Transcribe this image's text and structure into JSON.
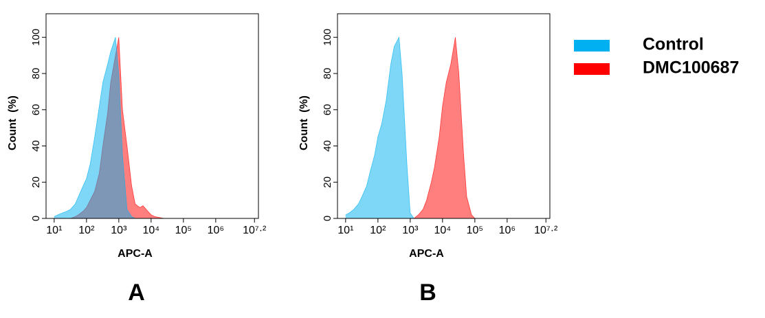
{
  "chart_data": [
    {
      "type": "area",
      "label": "A",
      "xlabel": "APC-A",
      "ylabel": "Count  (%)",
      "xscale": "log",
      "xlim": [
        5.6,
        21000000
      ],
      "ylim": [
        0,
        113
      ],
      "xticks": [
        {
          "value": 10,
          "label": "10¹"
        },
        {
          "value": 100,
          "label": "10²"
        },
        {
          "value": 1000,
          "label": "10³"
        },
        {
          "value": 10000,
          "label": "10⁴"
        },
        {
          "value": 100000,
          "label": "10⁵"
        },
        {
          "value": 1000000,
          "label": "10⁶"
        },
        {
          "value": 15848932,
          "label": "10⁷·²"
        }
      ],
      "yticks": [
        0,
        20,
        40,
        60,
        80,
        100
      ],
      "x": [
        10,
        13,
        18,
        25,
        32,
        45,
        56,
        79,
        100,
        130,
        180,
        250,
        320,
        450,
        560,
        790,
        1000,
        1300,
        1800,
        2500,
        3200,
        4500,
        5600,
        7900,
        10000,
        13000,
        18000,
        25000,
        32000,
        45000,
        56000,
        79000,
        100000
      ],
      "series": [
        {
          "name": "DMC100687",
          "color": "#ff0000",
          "values": [
            0,
            0,
            0,
            0,
            0,
            1,
            2,
            4,
            6,
            10,
            15,
            25,
            40,
            58,
            75,
            90,
            100,
            60,
            40,
            18,
            8,
            6,
            7,
            4,
            2,
            1,
            0.5,
            0,
            0,
            0,
            0,
            0,
            0
          ]
        },
        {
          "name": "Control",
          "color": "#00b0f0",
          "values": [
            1,
            2,
            3,
            4,
            5,
            8,
            12,
            18,
            22,
            30,
            45,
            62,
            75,
            85,
            92,
            100,
            80,
            35,
            5,
            1,
            0,
            0,
            0,
            0,
            0,
            0,
            0,
            0,
            0,
            0,
            0,
            0,
            0
          ]
        }
      ]
    },
    {
      "type": "area",
      "label": "B",
      "xlabel": "APC-A",
      "ylabel": "Count  (%)",
      "xscale": "log",
      "xlim": [
        5.6,
        21000000
      ],
      "ylim": [
        0,
        113
      ],
      "xticks": [
        {
          "value": 10,
          "label": "10¹"
        },
        {
          "value": 100,
          "label": "10²"
        },
        {
          "value": 1000,
          "label": "10³"
        },
        {
          "value": 10000,
          "label": "10⁴"
        },
        {
          "value": 100000,
          "label": "10⁵"
        },
        {
          "value": 1000000,
          "label": "10⁶"
        },
        {
          "value": 15848932,
          "label": "10⁷·²"
        }
      ],
      "yticks": [
        0,
        20,
        40,
        60,
        80,
        100
      ],
      "x": [
        10,
        13,
        18,
        25,
        32,
        45,
        56,
        79,
        100,
        130,
        180,
        250,
        320,
        450,
        560,
        790,
        1000,
        1300,
        1800,
        2500,
        3200,
        4500,
        5600,
        7900,
        10000,
        13000,
        18000,
        25000,
        32000,
        45000,
        56000,
        79000,
        100000
      ],
      "series": [
        {
          "name": "DMC100687",
          "color": "#ff0000",
          "values": [
            0,
            0,
            0,
            0,
            0,
            0,
            0,
            0,
            0,
            0,
            0,
            0,
            0,
            0,
            0,
            0,
            0,
            0,
            2,
            5,
            10,
            20,
            28,
            45,
            62,
            75,
            85,
            100,
            80,
            35,
            12,
            2,
            0
          ]
        },
        {
          "name": "Control",
          "color": "#00b0f0",
          "values": [
            2,
            3,
            5,
            8,
            12,
            18,
            25,
            35,
            45,
            52,
            65,
            85,
            95,
            100,
            80,
            30,
            3,
            0,
            0,
            0,
            0,
            0,
            0,
            0,
            0,
            0,
            0,
            0,
            0,
            0,
            0,
            0,
            0
          ]
        }
      ]
    }
  ]
}
